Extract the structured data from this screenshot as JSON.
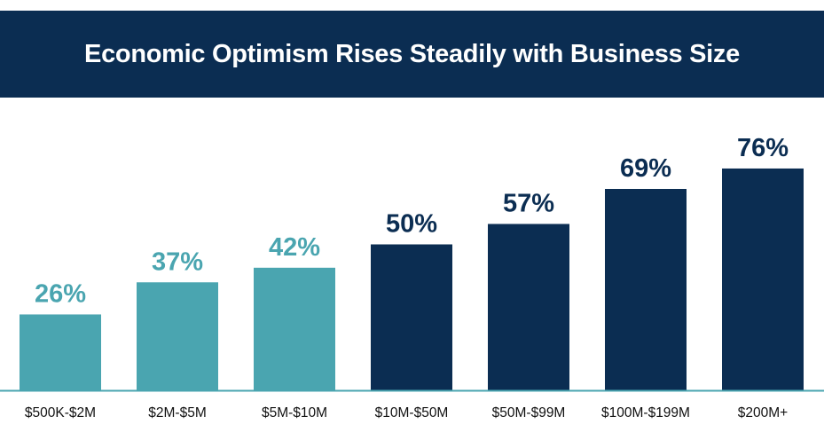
{
  "chart_data": {
    "type": "bar",
    "title": "Economic Optimism Rises Steadily with Business Size",
    "categories": [
      "$500K-$2M",
      "$2M-$5M",
      "$5M-$10M",
      "$10M-$50M",
      "$50M-$99M",
      "$100M-$199M",
      "$200M+"
    ],
    "values": [
      26,
      37,
      42,
      50,
      57,
      69,
      76
    ],
    "value_labels": [
      "26%",
      "37%",
      "42%",
      "50%",
      "57%",
      "69%",
      "76%"
    ],
    "bar_colors": [
      "#4aa5b0",
      "#4aa5b0",
      "#4aa5b0",
      "#0b2d52",
      "#0b2d52",
      "#0b2d52",
      "#0b2d52"
    ],
    "xlabel": "",
    "ylabel": "",
    "ylim": [
      0,
      80
    ],
    "grid": false,
    "legend": "none"
  }
}
